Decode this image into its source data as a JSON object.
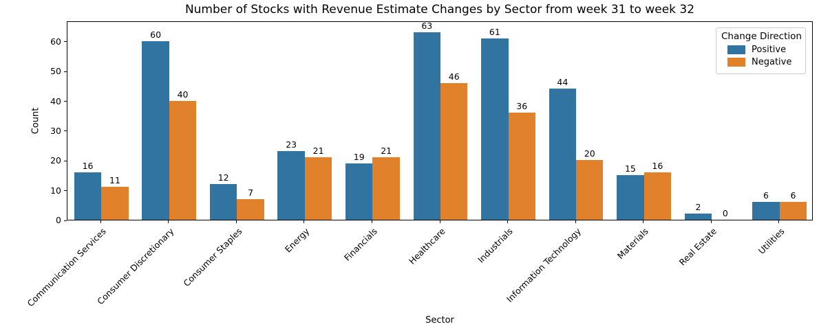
{
  "chart_data": {
    "type": "bar",
    "title": "Number of Stocks with Revenue Estimate Changes by Sector from week 31 to week 32",
    "xlabel": "Sector",
    "ylabel": "Count",
    "legend_title": "Change Direction",
    "legend_position": "upper right",
    "grid": false,
    "bar_value_labels": true,
    "categories": [
      "Communication Services",
      "Consumer Discretionary",
      "Consumer Staples",
      "Energy",
      "Financials",
      "Healthcare",
      "Industrials",
      "Information Technology",
      "Materials",
      "Real Estate",
      "Utilities"
    ],
    "series": [
      {
        "name": "Positive",
        "color": "#3274a1",
        "values": [
          16,
          60,
          12,
          23,
          19,
          63,
          61,
          44,
          15,
          2,
          6
        ]
      },
      {
        "name": "Negative",
        "color": "#e1812c",
        "values": [
          11,
          40,
          7,
          21,
          21,
          46,
          36,
          20,
          16,
          0,
          6
        ]
      }
    ],
    "yticks": [
      0,
      10,
      20,
      30,
      40,
      50,
      60
    ],
    "ylim": [
      0,
      66.9
    ]
  }
}
